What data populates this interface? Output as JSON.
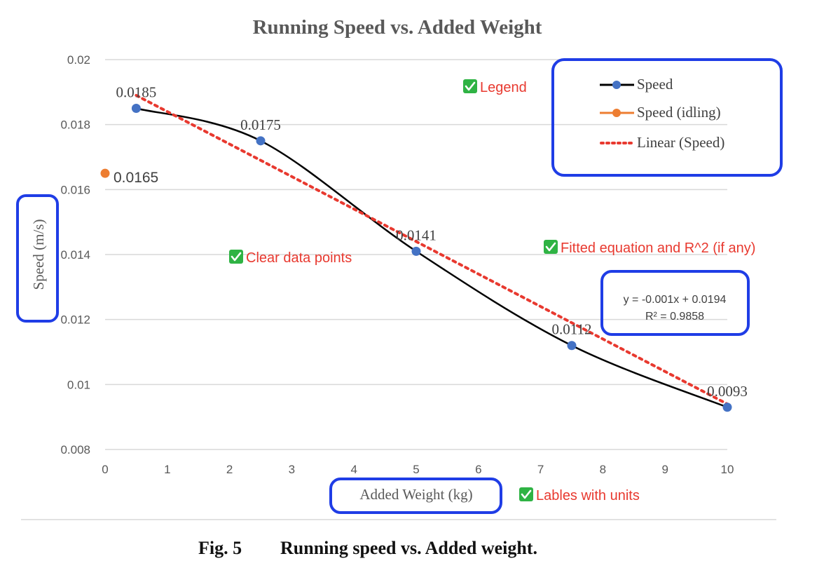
{
  "chart_data": {
    "type": "scatter",
    "title": "Running Speed vs. Added Weight",
    "xlabel": "Added Weight (kg)",
    "ylabel": "Speed (m/s)",
    "xlim": [
      0,
      10
    ],
    "ylim": [
      0.008,
      0.02
    ],
    "x_ticks": [
      "0",
      "1",
      "2",
      "3",
      "4",
      "5",
      "6",
      "7",
      "8",
      "9",
      "10"
    ],
    "y_ticks": [
      "0.008",
      "0.01",
      "0.012",
      "0.014",
      "0.016",
      "0.018",
      "0.02"
    ],
    "grid": "horizontal",
    "legend_position": "top-right",
    "series": [
      {
        "name": "Speed",
        "color": "#4472c4",
        "line_color": "#000000",
        "smooth_line": true,
        "points": [
          {
            "x": 0.5,
            "y": 0.0185,
            "label": "0.0185"
          },
          {
            "x": 2.5,
            "y": 0.0175,
            "label": "0.0175"
          },
          {
            "x": 5,
            "y": 0.0141,
            "label": "0.0141"
          },
          {
            "x": 7.5,
            "y": 0.0112,
            "label": "0.0112"
          },
          {
            "x": 10,
            "y": 0.0093,
            "label": "0.0093"
          }
        ]
      },
      {
        "name": "Speed (idling)",
        "color": "#ed7d31",
        "points": [
          {
            "x": 0,
            "y": 0.0165,
            "label": "0.0165"
          }
        ]
      }
    ],
    "trendline": {
      "name": "Linear (Speed)",
      "color": "#e8392f",
      "style": "dotted",
      "slope": -0.001,
      "intercept": 0.0194,
      "x_range": [
        0.5,
        10.05
      ],
      "equation": "y = -0.001x + 0.0194",
      "r_squared": "R² = 0.9858"
    },
    "annotations": [
      "Legend",
      "Clear data points",
      "Fitted equation and R^2 (if any)",
      "Lables with units"
    ],
    "annotation_icon": "check-mark-icon",
    "annotation_color": "#e8392f",
    "highlight_color": "#1f3de6"
  },
  "caption": {
    "fig_label": "Fig. 5",
    "text": "Running speed vs. Added weight."
  }
}
